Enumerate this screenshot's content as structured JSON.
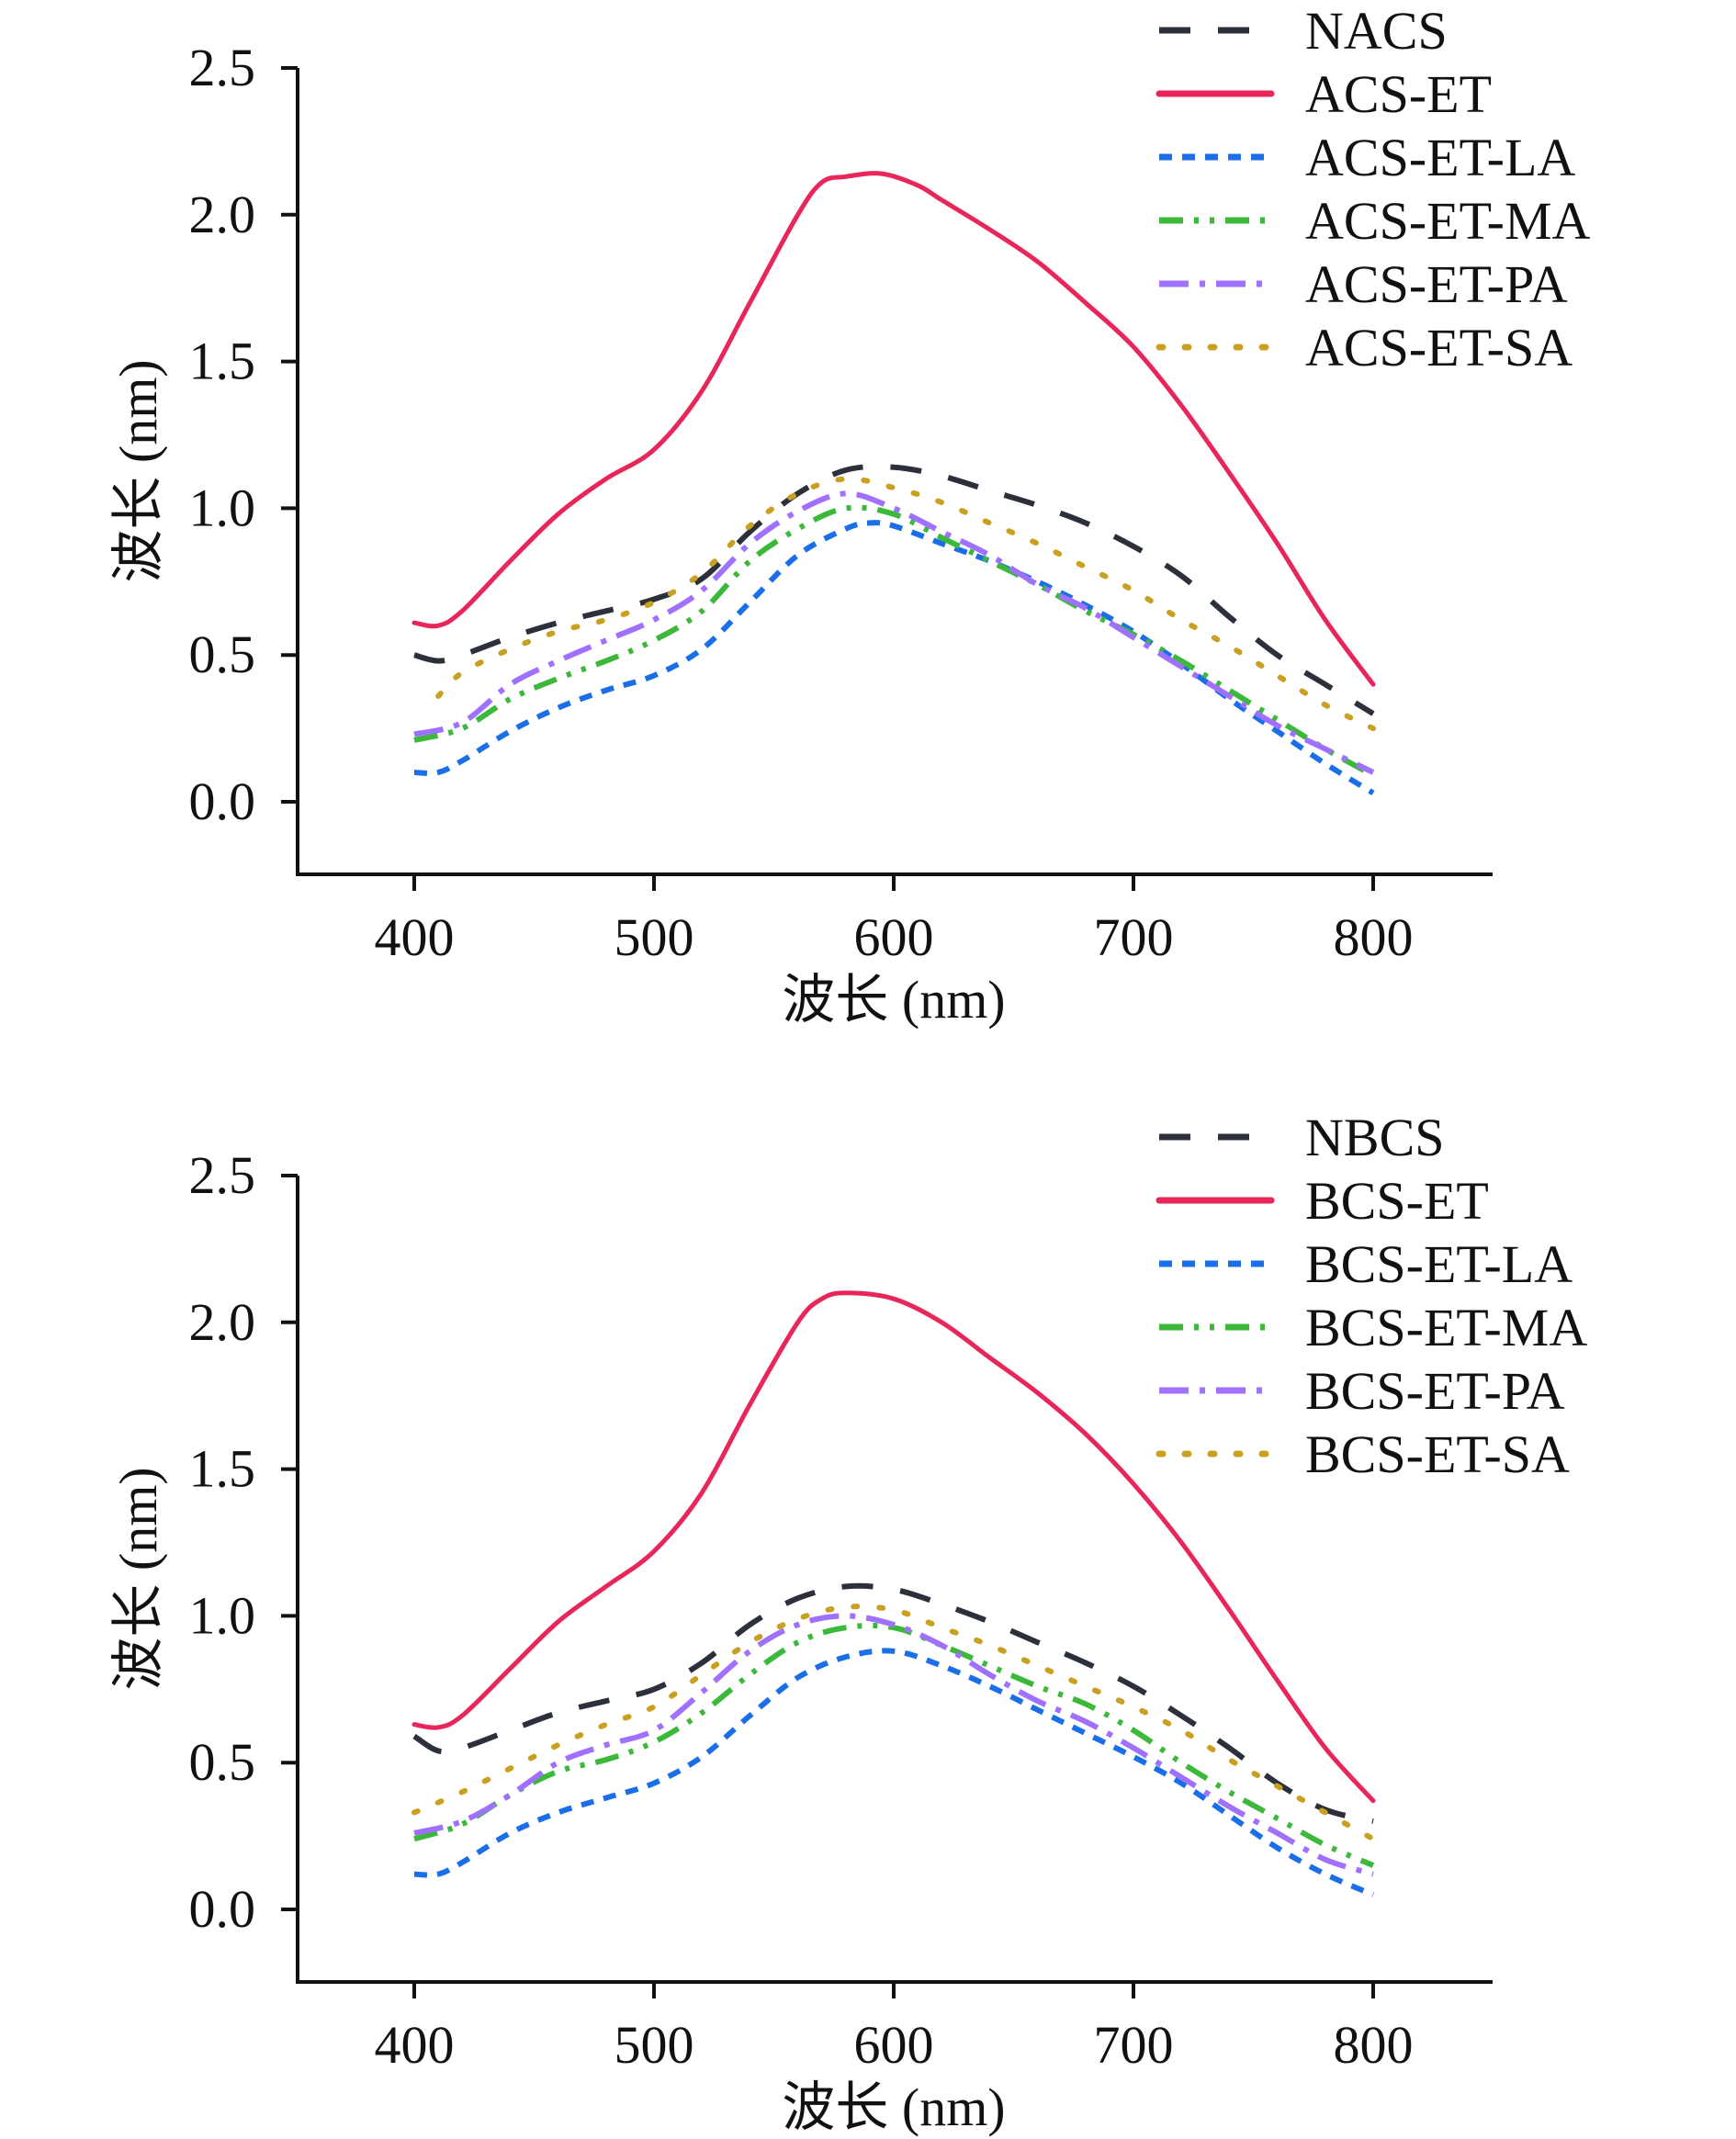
{
  "chart_data": [
    {
      "type": "line",
      "title": "",
      "xlabel": "波长 (nm)",
      "ylabel": "波长 (nm)",
      "xlim": [
        350,
        850
      ],
      "ylim": [
        -0.25,
        2.5
      ],
      "xticks": [
        "400",
        "500",
        "600",
        "700",
        "800"
      ],
      "yticks": [
        "0.0",
        "0.5",
        "1.0",
        "1.5",
        "2.0",
        "2.5"
      ],
      "grid": false,
      "legend_position": "top-right",
      "series": [
        {
          "name": "NACS",
          "color": "#2b303b",
          "style": "dashed",
          "x": [
            400,
            410,
            420,
            440,
            460,
            480,
            500,
            520,
            540,
            560,
            580,
            600,
            620,
            640,
            660,
            680,
            700,
            720,
            740,
            760,
            780,
            800
          ],
          "y": [
            0.5,
            0.48,
            0.5,
            0.56,
            0.61,
            0.65,
            0.69,
            0.76,
            0.92,
            1.05,
            1.13,
            1.14,
            1.11,
            1.06,
            1.01,
            0.95,
            0.87,
            0.77,
            0.63,
            0.5,
            0.4,
            0.3
          ]
        },
        {
          "name": "ACS-ET",
          "color": "#e8265a",
          "style": "solid",
          "x": [
            400,
            410,
            420,
            440,
            460,
            480,
            500,
            520,
            540,
            560,
            570,
            580,
            595,
            610,
            620,
            640,
            660,
            680,
            700,
            720,
            740,
            760,
            780,
            800
          ],
          "y": [
            0.61,
            0.6,
            0.65,
            0.82,
            0.98,
            1.1,
            1.2,
            1.4,
            1.7,
            2.0,
            2.11,
            2.13,
            2.14,
            2.1,
            2.05,
            1.95,
            1.84,
            1.7,
            1.55,
            1.35,
            1.12,
            0.88,
            0.62,
            0.4
          ]
        },
        {
          "name": "ACS-ET-LA",
          "color": "#1a6fe8",
          "style": "short-dash",
          "x": [
            400,
            410,
            420,
            440,
            460,
            480,
            500,
            520,
            540,
            560,
            580,
            590,
            600,
            620,
            640,
            660,
            680,
            700,
            720,
            740,
            760,
            780,
            800
          ],
          "y": [
            0.1,
            0.1,
            0.14,
            0.24,
            0.32,
            0.38,
            0.43,
            0.52,
            0.68,
            0.84,
            0.93,
            0.95,
            0.94,
            0.88,
            0.82,
            0.75,
            0.67,
            0.58,
            0.47,
            0.35,
            0.24,
            0.13,
            0.03
          ]
        },
        {
          "name": "ACS-ET-MA",
          "color": "#3cb83a",
          "style": "dash-dot-dot",
          "x": [
            400,
            420,
            440,
            460,
            480,
            500,
            520,
            540,
            560,
            580,
            600,
            620,
            640,
            660,
            680,
            700,
            720,
            740,
            760,
            780,
            800
          ],
          "y": [
            0.21,
            0.25,
            0.35,
            0.42,
            0.48,
            0.55,
            0.65,
            0.82,
            0.93,
            1.0,
            0.98,
            0.9,
            0.82,
            0.74,
            0.65,
            0.57,
            0.48,
            0.38,
            0.28,
            0.18,
            0.09
          ]
        },
        {
          "name": "ACS-ET-PA",
          "color": "#a070ff",
          "style": "dash-dot",
          "x": [
            400,
            420,
            440,
            460,
            480,
            500,
            520,
            540,
            560,
            580,
            600,
            620,
            640,
            660,
            680,
            700,
            720,
            740,
            760,
            780,
            800
          ],
          "y": [
            0.23,
            0.27,
            0.4,
            0.48,
            0.55,
            0.62,
            0.72,
            0.88,
            0.99,
            1.05,
            1.0,
            0.92,
            0.84,
            0.74,
            0.66,
            0.56,
            0.46,
            0.36,
            0.26,
            0.18,
            0.1
          ]
        },
        {
          "name": "ACS-ET-SA",
          "color": "#c9a020",
          "style": "dotted",
          "x": [
            410,
            420,
            440,
            460,
            480,
            500,
            520,
            540,
            560,
            580,
            600,
            620,
            640,
            660,
            680,
            700,
            720,
            740,
            760,
            780,
            800
          ],
          "y": [
            0.36,
            0.44,
            0.52,
            0.58,
            0.62,
            0.68,
            0.78,
            0.94,
            1.05,
            1.1,
            1.07,
            1.02,
            0.95,
            0.88,
            0.8,
            0.72,
            0.62,
            0.53,
            0.43,
            0.33,
            0.25
          ]
        }
      ]
    },
    {
      "type": "line",
      "title": "",
      "xlabel": "波长 (nm)",
      "ylabel": "波长 (nm)",
      "xlim": [
        350,
        850
      ],
      "ylim": [
        -0.25,
        2.5
      ],
      "xticks": [
        "400",
        "500",
        "600",
        "700",
        "800"
      ],
      "yticks": [
        "0.0",
        "0.5",
        "1.0",
        "1.5",
        "2.0",
        "2.5"
      ],
      "grid": false,
      "legend_position": "top-right",
      "series": [
        {
          "name": "NBCS",
          "color": "#2b303b",
          "style": "dashed",
          "x": [
            400,
            410,
            420,
            440,
            460,
            480,
            500,
            520,
            540,
            560,
            580,
            600,
            620,
            640,
            660,
            680,
            700,
            720,
            740,
            760,
            780,
            800
          ],
          "y": [
            0.59,
            0.54,
            0.55,
            0.61,
            0.67,
            0.71,
            0.75,
            0.84,
            0.97,
            1.06,
            1.1,
            1.09,
            1.04,
            0.98,
            0.91,
            0.84,
            0.76,
            0.66,
            0.55,
            0.43,
            0.34,
            0.3
          ]
        },
        {
          "name": "BCS-ET",
          "color": "#e8265a",
          "style": "solid",
          "x": [
            400,
            410,
            420,
            440,
            460,
            480,
            500,
            520,
            540,
            560,
            570,
            580,
            600,
            620,
            640,
            660,
            680,
            700,
            720,
            740,
            760,
            780,
            800
          ],
          "y": [
            0.63,
            0.62,
            0.66,
            0.82,
            0.98,
            1.1,
            1.22,
            1.42,
            1.72,
            2.0,
            2.08,
            2.1,
            2.08,
            2.0,
            1.88,
            1.76,
            1.62,
            1.45,
            1.25,
            1.02,
            0.78,
            0.55,
            0.37
          ]
        },
        {
          "name": "BCS-ET-LA",
          "color": "#1a6fe8",
          "style": "short-dash",
          "x": [
            400,
            410,
            420,
            440,
            460,
            480,
            500,
            520,
            540,
            560,
            580,
            600,
            620,
            640,
            660,
            680,
            700,
            720,
            740,
            760,
            780,
            800
          ],
          "y": [
            0.12,
            0.12,
            0.16,
            0.26,
            0.33,
            0.38,
            0.43,
            0.52,
            0.66,
            0.79,
            0.86,
            0.88,
            0.83,
            0.76,
            0.68,
            0.6,
            0.52,
            0.43,
            0.32,
            0.21,
            0.12,
            0.05
          ]
        },
        {
          "name": "BCS-ET-MA",
          "color": "#3cb83a",
          "style": "dash-dot-dot",
          "x": [
            400,
            420,
            440,
            460,
            480,
            500,
            520,
            540,
            560,
            580,
            600,
            620,
            640,
            660,
            680,
            700,
            720,
            740,
            760,
            780,
            800
          ],
          "y": [
            0.24,
            0.29,
            0.39,
            0.47,
            0.51,
            0.57,
            0.67,
            0.8,
            0.91,
            0.96,
            0.96,
            0.9,
            0.83,
            0.76,
            0.7,
            0.61,
            0.5,
            0.4,
            0.31,
            0.22,
            0.15
          ]
        },
        {
          "name": "BCS-ET-PA",
          "color": "#a070ff",
          "style": "dash-dot",
          "x": [
            400,
            420,
            440,
            460,
            480,
            500,
            520,
            540,
            560,
            580,
            600,
            620,
            640,
            660,
            680,
            700,
            720,
            740,
            760,
            780,
            800
          ],
          "y": [
            0.26,
            0.3,
            0.39,
            0.5,
            0.56,
            0.61,
            0.74,
            0.88,
            0.97,
            1.0,
            0.97,
            0.9,
            0.8,
            0.71,
            0.64,
            0.55,
            0.45,
            0.35,
            0.26,
            0.17,
            0.12
          ]
        },
        {
          "name": "BCS-ET-SA",
          "color": "#c9a020",
          "style": "dotted",
          "x": [
            400,
            420,
            440,
            460,
            480,
            500,
            520,
            540,
            560,
            580,
            600,
            620,
            640,
            660,
            680,
            700,
            720,
            740,
            760,
            780,
            800
          ],
          "y": [
            0.33,
            0.4,
            0.48,
            0.56,
            0.63,
            0.69,
            0.8,
            0.91,
            0.99,
            1.03,
            1.02,
            0.96,
            0.9,
            0.83,
            0.76,
            0.69,
            0.61,
            0.51,
            0.42,
            0.33,
            0.24
          ]
        }
      ]
    }
  ]
}
